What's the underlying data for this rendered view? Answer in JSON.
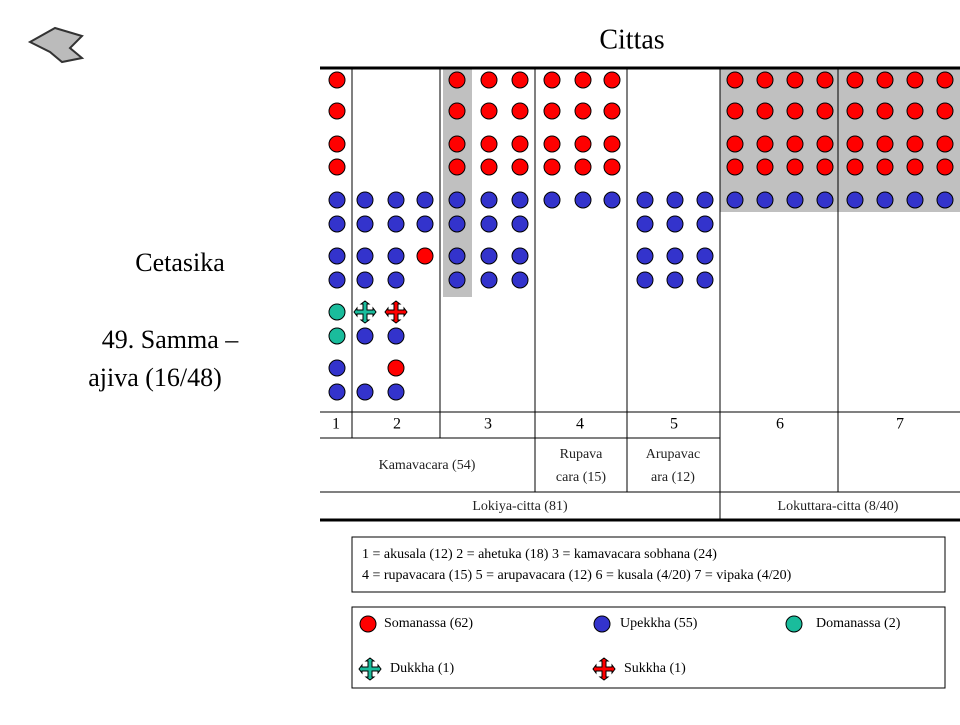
{
  "header": {
    "title": "Cittas"
  },
  "side": {
    "label": "Cetasika",
    "item": [
      "49. Samma –",
      "ajiva (16/48)"
    ]
  },
  "table": {
    "columns": [
      "1",
      "2",
      "3",
      "4",
      "5",
      "6",
      "7"
    ],
    "groups": [
      [
        "Kamavacara (54)"
      ],
      [
        "Rupava",
        "cara (15)"
      ],
      [
        "Arupavac",
        "ara (12)"
      ]
    ],
    "supergroups": [
      "Lokiya-citta (81)",
      "Lokuttara-citta (8/40)"
    ]
  },
  "key": [
    "1 = akusala (12) 2 = ahetuka (18) 3 = kamavacara sobhana (24)",
    "4 = rupavacara (15) 5 = arupavacara (12) 6 = kusala (4/20) 7 = vipaka (4/20)"
  ],
  "legend": [
    "Somanassa (62)",
    "Upekkha (55)",
    "Domanassa (2)",
    "Dukkha (1)",
    "Sukkha (1)"
  ]
}
